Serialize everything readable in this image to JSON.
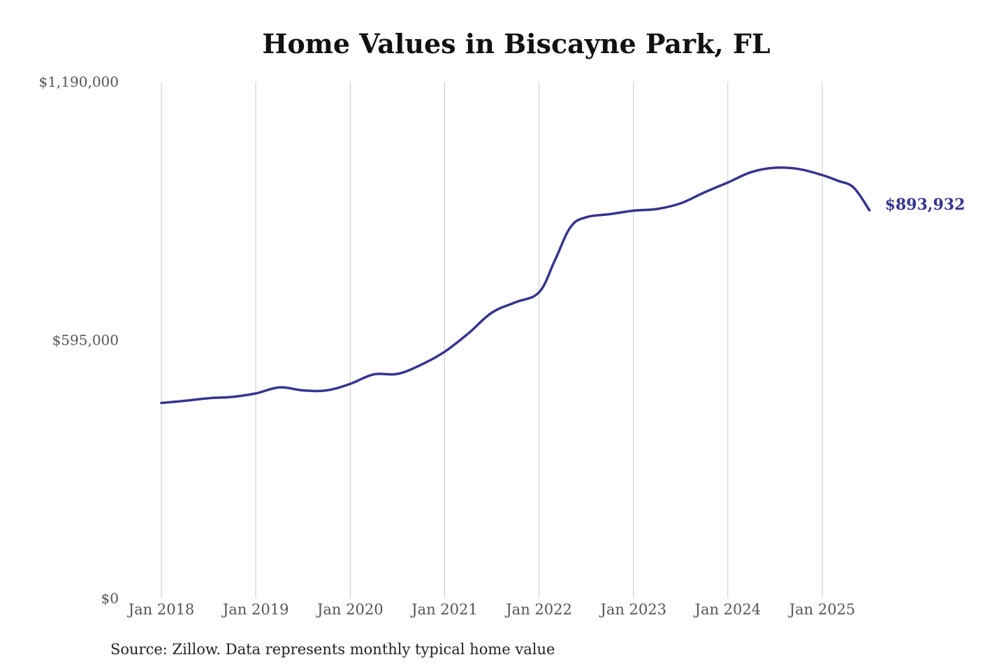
{
  "title": "Home Values in Biscayne Park, FL",
  "source": "Source: Zillow. Data represents monthly typical home value",
  "colors": {
    "line": "#36348f",
    "grid": "#c8c8c8",
    "text": "#555555"
  },
  "chart_data": {
    "type": "line",
    "title": "Home Values in Biscayne Park, FL",
    "xlabel": "",
    "ylabel": "",
    "ylim": [
      0,
      1190000
    ],
    "xlim": [
      "2018-01",
      "2025-07"
    ],
    "grid": "vertical",
    "y_ticks": [
      {
        "value": 0,
        "label": "$0"
      },
      {
        "value": 595000,
        "label": "$595,000"
      },
      {
        "value": 1190000,
        "label": "$1,190,000"
      }
    ],
    "x_ticks": [
      {
        "value": "2018-01",
        "label": "Jan 2018"
      },
      {
        "value": "2019-01",
        "label": "Jan 2019"
      },
      {
        "value": "2020-01",
        "label": "Jan 2020"
      },
      {
        "value": "2021-01",
        "label": "Jan 2021"
      },
      {
        "value": "2022-01",
        "label": "Jan 2022"
      },
      {
        "value": "2023-01",
        "label": "Jan 2023"
      },
      {
        "value": "2024-01",
        "label": "Jan 2024"
      },
      {
        "value": "2025-01",
        "label": "Jan 2025"
      }
    ],
    "end_label": "$893,932",
    "series": [
      {
        "x": [
          "2018-01",
          "2018-04",
          "2018-07",
          "2018-10",
          "2019-01",
          "2019-04",
          "2019-07",
          "2019-10",
          "2020-01",
          "2020-04",
          "2020-07",
          "2020-10",
          "2021-01",
          "2021-04",
          "2021-07",
          "2021-10",
          "2022-01",
          "2022-03",
          "2022-05",
          "2022-07",
          "2022-10",
          "2023-01",
          "2023-04",
          "2023-07",
          "2023-10",
          "2024-01",
          "2024-04",
          "2024-07",
          "2024-10",
          "2025-01",
          "2025-03",
          "2025-05",
          "2025-07"
        ],
        "y": [
          450000,
          455000,
          461000,
          464000,
          472000,
          486000,
          479000,
          479000,
          494000,
          516000,
          517000,
          538000,
          568000,
          610000,
          658000,
          682000,
          705000,
          778000,
          855000,
          878000,
          885000,
          893000,
          897000,
          910000,
          935000,
          958000,
          982000,
          992000,
          989000,
          975000,
          962000,
          946000,
          893932
        ]
      }
    ]
  }
}
